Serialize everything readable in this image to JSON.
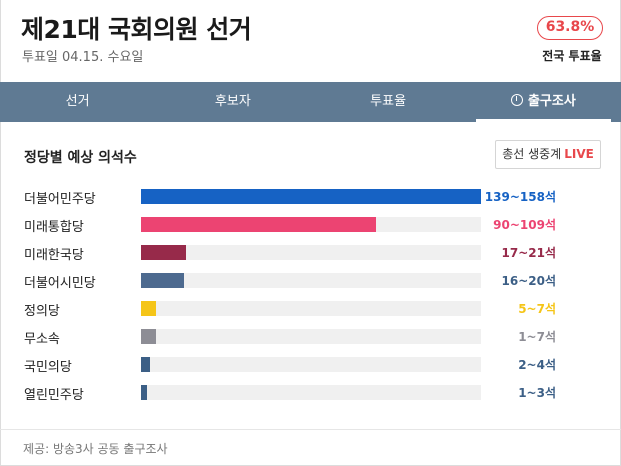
{
  "header": {
    "title": "제21대 국회의원 선거",
    "subtitle": "투표일 04.15. 수요일",
    "turnout_value": "63.8%",
    "turnout_label": "전국 투표율",
    "turnout_color": "#e8474b"
  },
  "tabs": [
    {
      "label": "선거",
      "active": false
    },
    {
      "label": "후보자",
      "active": false
    },
    {
      "label": "투표율",
      "active": false
    },
    {
      "label": "출구조사",
      "active": true,
      "icon": "clock-icon"
    }
  ],
  "section": {
    "title": "정당별 예상 의석수",
    "live_button": {
      "label": "총선 생중계",
      "tag": "LIVE"
    }
  },
  "chart_data": {
    "type": "bar",
    "orientation": "horizontal",
    "categories": [
      "더불어민주당",
      "미래통합당",
      "미래한국당",
      "더불어시민당",
      "정의당",
      "무소속",
      "국민의당",
      "열린민주당"
    ],
    "values": [
      158,
      109,
      21,
      20,
      7,
      7,
      4,
      3
    ],
    "xlim": [
      0,
      158
    ],
    "seat_labels": [
      "139~158석",
      "90~109석",
      "17~21석",
      "16~20석",
      "5~7석",
      "1~7석",
      "2~4석",
      "1~3석"
    ],
    "colors": [
      "#1662c4",
      "#ec4472",
      "#972a4a",
      "#4d6a8f",
      "#f5c518",
      "#8d8d95",
      "#3c5f86",
      "#3c5f86"
    ],
    "label_colors": [
      "#1662c4",
      "#ec4472",
      "#972a4a",
      "#3c5f86",
      "#f5c518",
      "#8d8d95",
      "#3c5f86",
      "#3c5f86"
    ]
  },
  "footer": {
    "source": "제공: 방송3사 공동 출구조사"
  }
}
